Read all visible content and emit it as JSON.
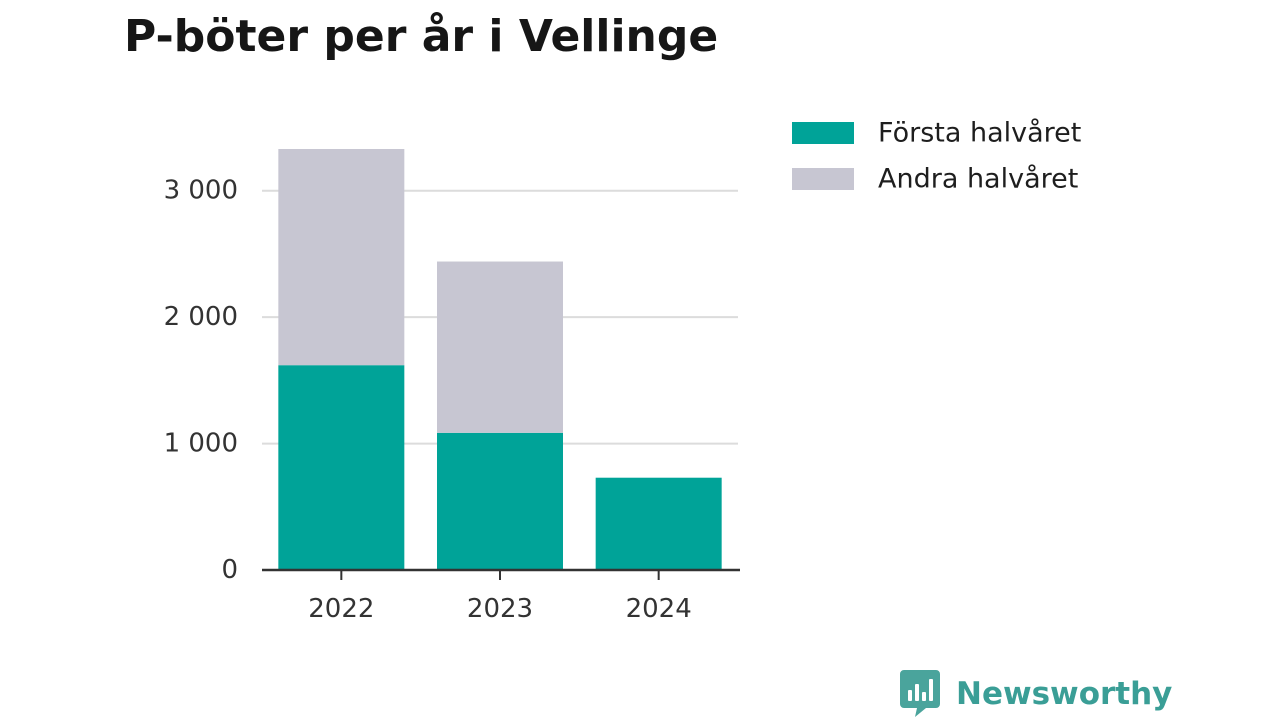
{
  "chart_data": {
    "type": "bar",
    "stacked": true,
    "title": "P-böter per år i Vellinge",
    "xlabel": "",
    "ylabel": "",
    "categories": [
      "2022",
      "2023",
      "2024"
    ],
    "series": [
      {
        "name": "Första halvåret",
        "color": "#00a398",
        "values": [
          1620,
          1085,
          730
        ]
      },
      {
        "name": "Andra halvåret",
        "color": "#c7c6d2",
        "values": [
          1710,
          1355,
          0
        ]
      }
    ],
    "ylim": [
      0,
      3330
    ],
    "yticks": [
      {
        "value": 0,
        "label": "0"
      },
      {
        "value": 1000,
        "label": "1 000"
      },
      {
        "value": 2000,
        "label": "2 000"
      },
      {
        "value": 3000,
        "label": "3 000"
      }
    ],
    "grid": true,
    "legend_position": "top-right"
  },
  "brand": {
    "name": "Newsworthy",
    "icon": "newsworthy-logo-icon",
    "color": "#3a9e96"
  }
}
